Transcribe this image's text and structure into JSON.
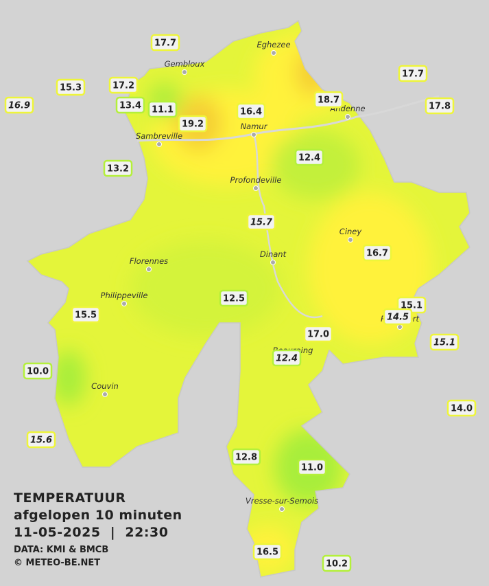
{
  "towns": [
    "Eghezee",
    "Gembloux",
    "Andenne",
    "Namur",
    "Sambreville",
    "Profondeville",
    "Ciney",
    "Dinant",
    "Florennes",
    "Philippeville",
    "Rochefort",
    "Beauraing",
    "Couvin",
    "Vresse-sur-Semois"
  ],
  "stations": [
    "17.7",
    "15.3",
    "17.2",
    "16.9",
    "13.4",
    "11.1",
    "19.2",
    "16.4",
    "18.7",
    "17.7",
    "17.8",
    "13.2",
    "12.4",
    "15.7",
    "16.7",
    "12.5",
    "15.1",
    "14.5",
    "15.5",
    "15.1",
    "17.0",
    "12.4",
    "10.0",
    "14.0",
    "15.6",
    "12.8",
    "11.0",
    "16.5",
    "10.2"
  ],
  "legend": {
    "title": "TEMPERATUUR",
    "period": "afgelopen 10 minuten",
    "datetime": "11-05-2025  |  22:30",
    "data": "DATA: KMI & BMCB",
    "copyright": "© METEO-BE.NET"
  }
}
